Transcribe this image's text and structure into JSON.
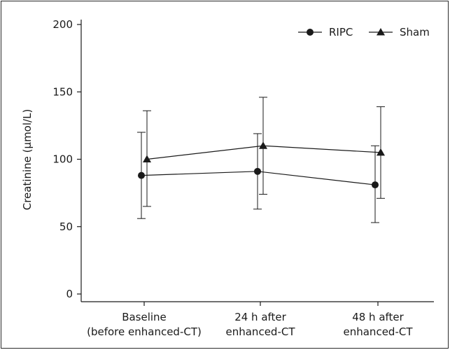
{
  "chart_data": {
    "type": "line",
    "title": "",
    "xlabel": "",
    "ylabel": "Creatinine (μmol/L)",
    "ylim": [
      0,
      200
    ],
    "yticks": [
      0,
      50,
      100,
      150,
      200
    ],
    "grid": false,
    "legend_position": "top-right",
    "categories": [
      [
        "Baseline",
        "(before enhanced-CT)"
      ],
      [
        "24 h after",
        "enhanced-CT"
      ],
      [
        "48 h after",
        "enhanced-CT"
      ]
    ],
    "series": [
      {
        "name": "RIPC",
        "marker": "circle",
        "color": "#1a1a1a",
        "values": [
          88,
          91,
          81
        ],
        "err_low": [
          56,
          63,
          53
        ],
        "err_high": [
          120,
          119,
          110
        ]
      },
      {
        "name": "Sham",
        "marker": "triangle",
        "color": "#1a1a1a",
        "values": [
          100,
          110,
          105
        ],
        "err_low": [
          65,
          74,
          71
        ],
        "err_high": [
          136,
          146,
          139
        ]
      }
    ]
  }
}
